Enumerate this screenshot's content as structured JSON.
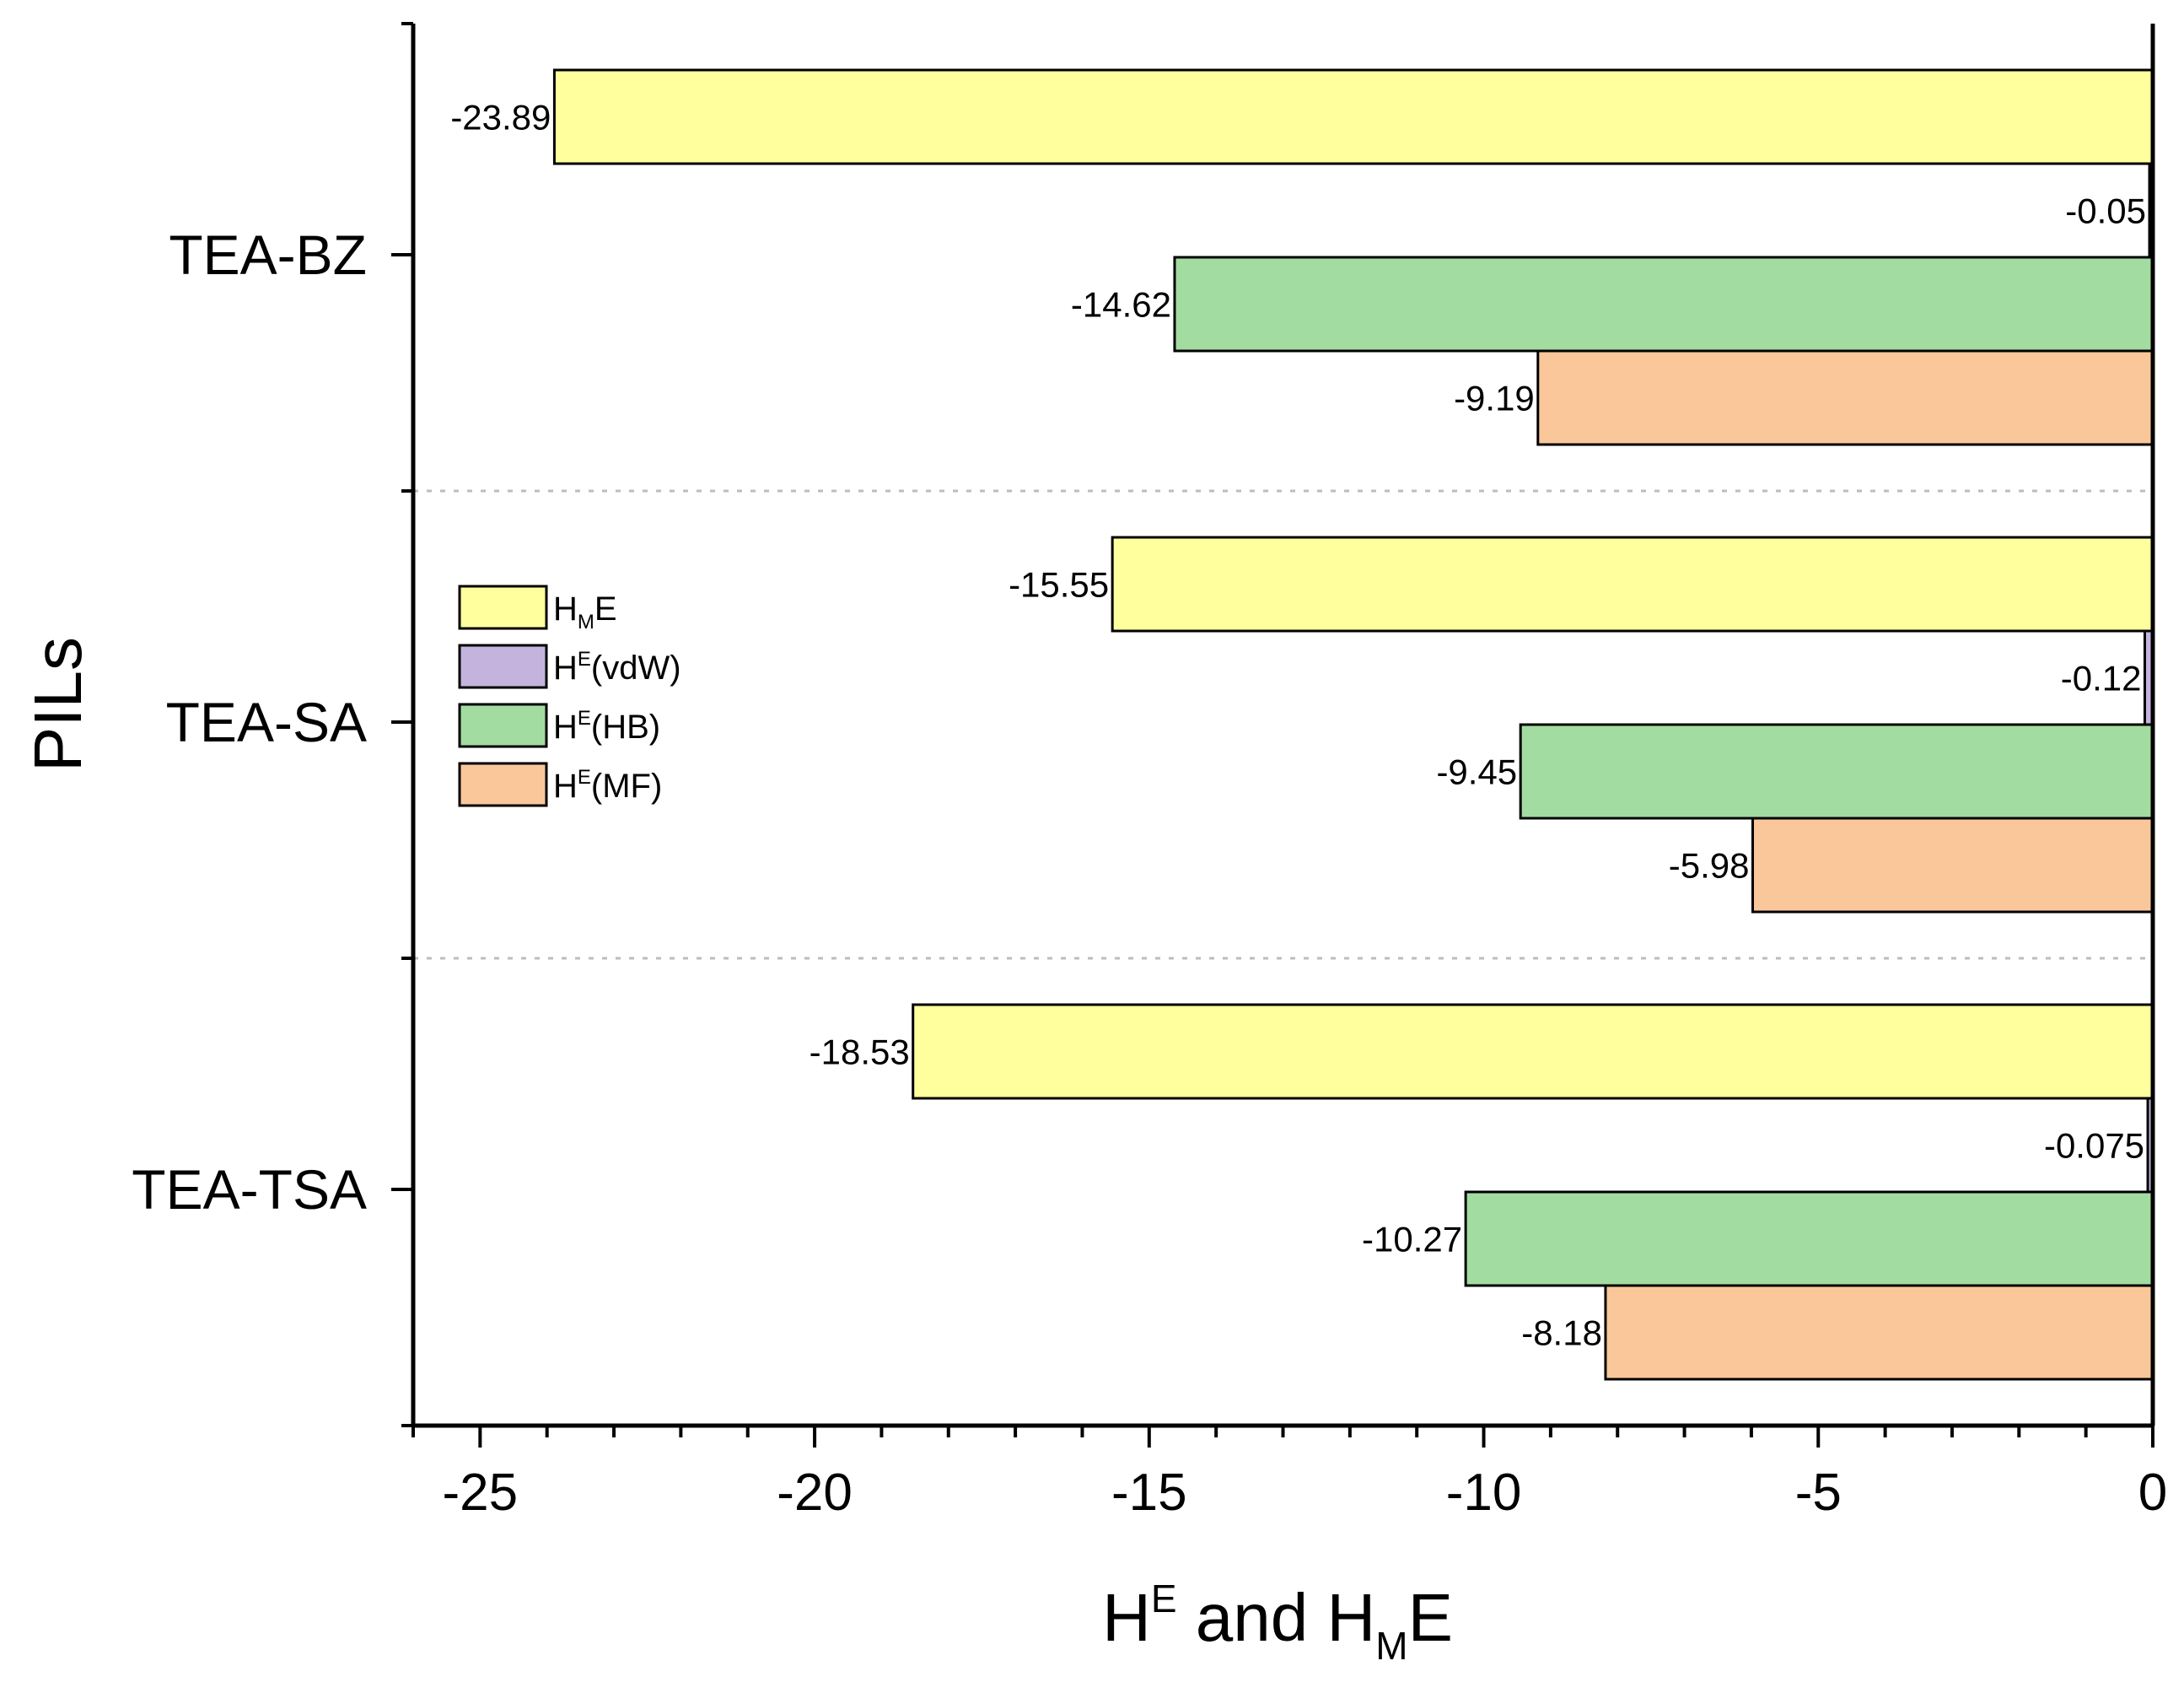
{
  "chart_data": {
    "type": "bar",
    "orientation": "horizontal",
    "title": "",
    "categories": [
      "TEA-BZ",
      "TEA-SA",
      "TEA-TSA"
    ],
    "series": [
      {
        "name": "H_ME",
        "display": {
          "base": "H",
          "sub": "M",
          "sup": "",
          "rest": "E"
        },
        "color": "#ffff9e",
        "values": [
          -23.89,
          -15.55,
          -18.53
        ],
        "labels": [
          "-23.89",
          "-15.55",
          "-18.53"
        ]
      },
      {
        "name": "H^E(vdW)",
        "display": {
          "base": "H",
          "sub": "",
          "sup": "E",
          "rest": "(vdW)"
        },
        "color": "#c3b3dd",
        "values": [
          -0.05,
          -0.12,
          -0.075
        ],
        "labels": [
          "-0.05",
          "-0.12",
          "-0.075"
        ]
      },
      {
        "name": "H^E(HB)",
        "display": {
          "base": "H",
          "sub": "",
          "sup": "E",
          "rest": "(HB)"
        },
        "color": "#a2dca0",
        "values": [
          -14.62,
          -9.45,
          -10.27
        ],
        "labels": [
          "-14.62",
          "-9.45",
          "-10.27"
        ]
      },
      {
        "name": "H^E(MF)",
        "display": {
          "base": "H",
          "sub": "",
          "sup": "E",
          "rest": "(MF)"
        },
        "color": "#fac79a",
        "values": [
          -9.19,
          -5.98,
          -8.18
        ],
        "labels": [
          "-9.19",
          "-5.98",
          "-8.18"
        ]
      }
    ],
    "xlim": [
      -26,
      0
    ],
    "xticks": [
      -25,
      -20,
      -15,
      -10,
      -5,
      0
    ],
    "xtick_labels": [
      "-25",
      "-20",
      "-15",
      "-10",
      "-5",
      "0"
    ],
    "xlabel": {
      "p1": "H",
      "p1_sup": "E",
      "p2": " and H",
      "p2_sub": "M",
      "p3": "E"
    },
    "ylabel": "PILs",
    "legend_position": "center-left",
    "grid": "dotted separators between categories"
  }
}
